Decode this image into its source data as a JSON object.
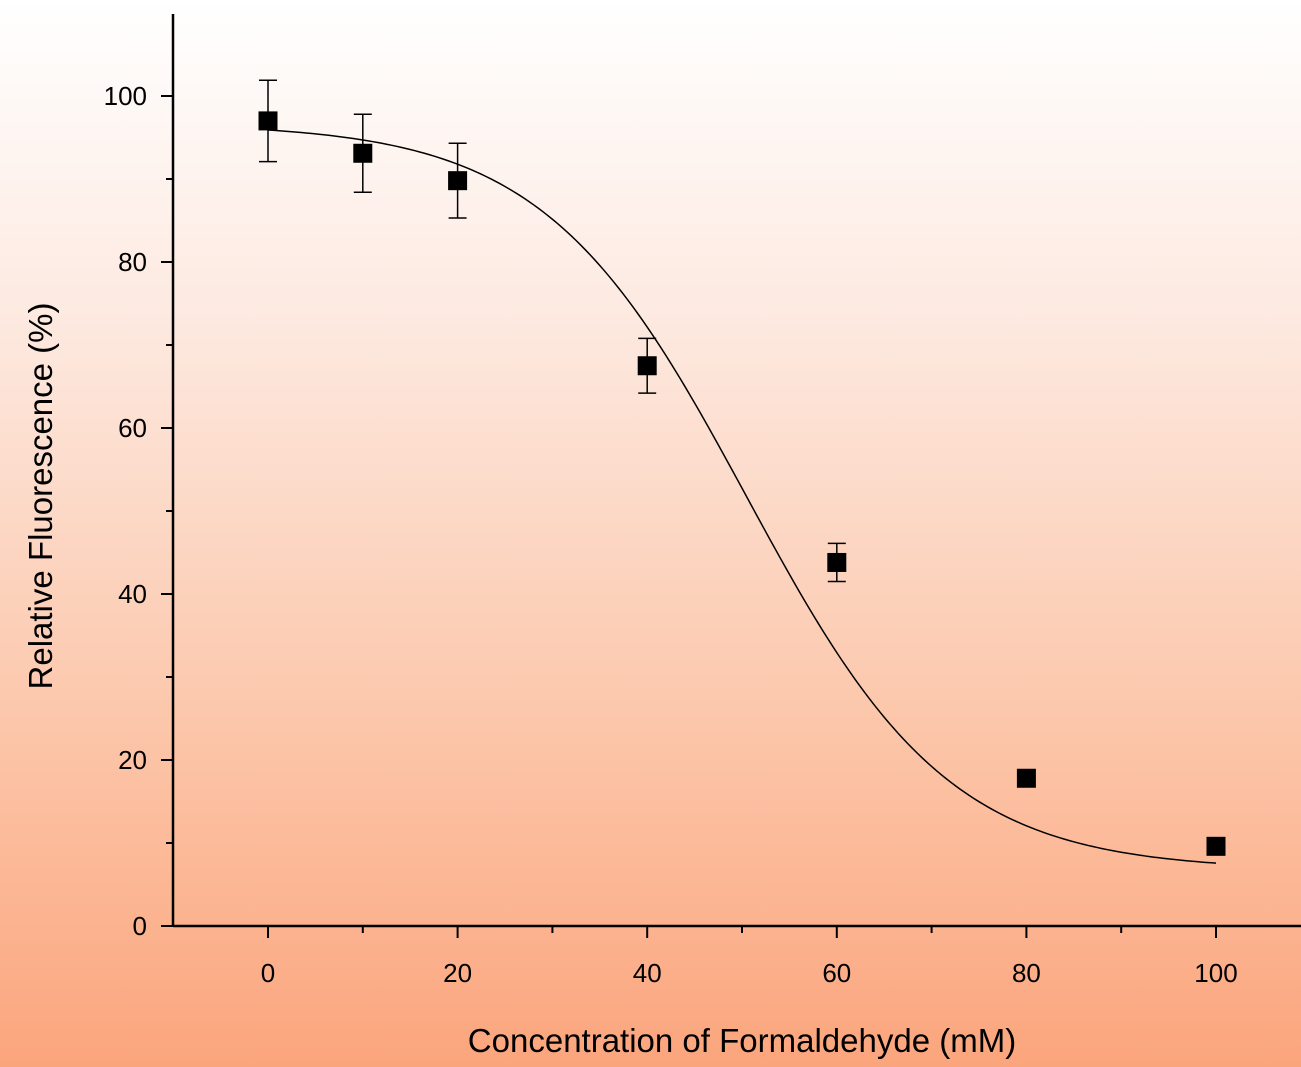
{
  "chart_data": {
    "type": "scatter",
    "title": "",
    "xlabel": "Concentration of Formaldehyde (mM)",
    "ylabel": "Relative Fluorescence (%)",
    "xlim": [
      -10,
      107
    ],
    "ylim": [
      0,
      110
    ],
    "x_ticks": [
      0,
      20,
      40,
      60,
      80,
      100
    ],
    "x_tick_labels": [
      "0",
      "20",
      "40",
      "60",
      "80",
      "100"
    ],
    "x_minor_ticks": [
      10,
      30,
      50,
      70,
      90
    ],
    "y_ticks": [
      0,
      20,
      40,
      60,
      80,
      100
    ],
    "y_tick_labels": [
      "0",
      "20",
      "40",
      "60",
      "80",
      "100"
    ],
    "y_minor_ticks": [
      10,
      30,
      50,
      70,
      90
    ],
    "grid": false,
    "legend": "none",
    "marker": "square",
    "marker_color": "#000000",
    "series": [
      {
        "x": [
          0,
          10,
          20,
          40,
          60,
          80,
          100
        ],
        "y": [
          97.0,
          93.1,
          89.8,
          67.5,
          43.8,
          17.8,
          9.6
        ],
        "error": [
          4.9,
          4.7,
          4.5,
          3.3,
          2.3,
          0,
          0
        ]
      }
    ],
    "fit_curve": {
      "type": "sigmoidal",
      "top": 96.7,
      "bottom": 6.7,
      "x50": 50.5,
      "slope": 10.7,
      "x_range": [
        0,
        100
      ]
    }
  }
}
